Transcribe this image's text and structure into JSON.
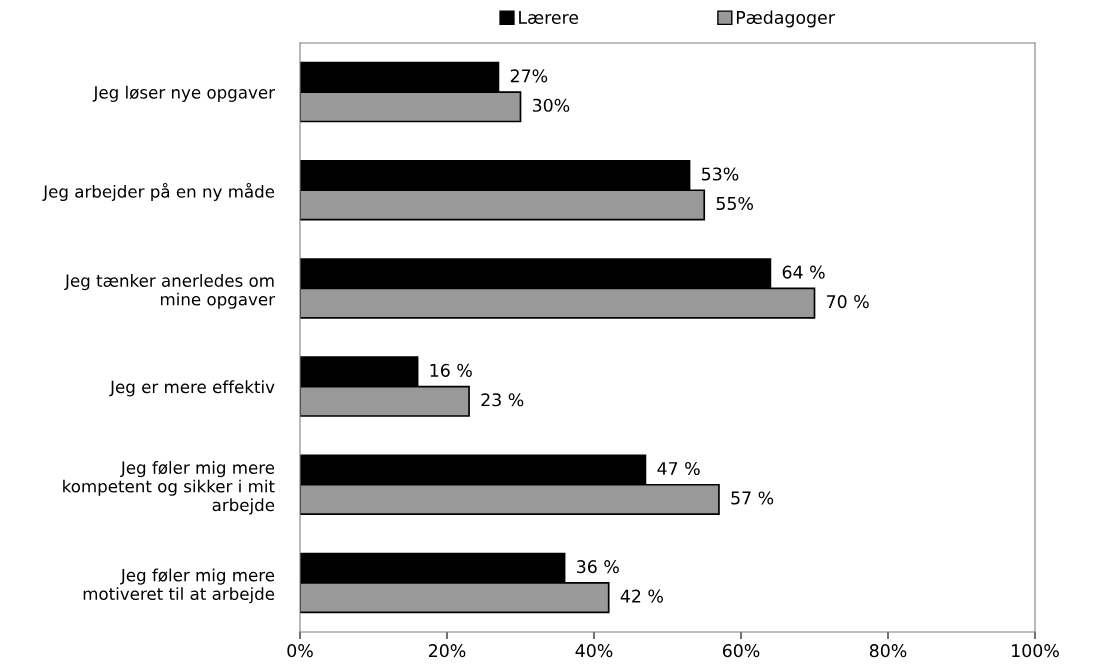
{
  "chart_data": {
    "type": "bar",
    "orientation": "horizontal",
    "categories": [
      "Jeg løser nye opgaver",
      "Jeg arbejder på en ny måde",
      "Jeg tænker anerledes om\nmine opgaver",
      "Jeg er mere effektiv",
      "Jeg føler mig mere\nkompetent og sikker i mit\narbejde",
      "Jeg føler mig mere\nmotiveret til at arbejde"
    ],
    "series": [
      {
        "name": "Lærere",
        "color": "#000000",
        "values": [
          27,
          53,
          64,
          16,
          47,
          36
        ],
        "value_labels": [
          "27%",
          "53%",
          "64 %",
          "16 %",
          "47 %",
          "36 %"
        ]
      },
      {
        "name": "Pædagoger",
        "color": "#999999",
        "values": [
          30,
          55,
          70,
          23,
          57,
          42
        ],
        "value_labels": [
          "30%",
          "55%",
          "70 %",
          "23 %",
          "57 %",
          "42 %"
        ]
      }
    ],
    "xlim": [
      0,
      100
    ],
    "xticks": [
      {
        "value": 0,
        "label": "0%"
      },
      {
        "value": 20,
        "label": "20%"
      },
      {
        "value": 40,
        "label": "40%"
      },
      {
        "value": 60,
        "label": "60%"
      },
      {
        "value": 80,
        "label": "80%"
      },
      {
        "value": 100,
        "label": "100%"
      }
    ],
    "grid": false,
    "legend": "top"
  }
}
